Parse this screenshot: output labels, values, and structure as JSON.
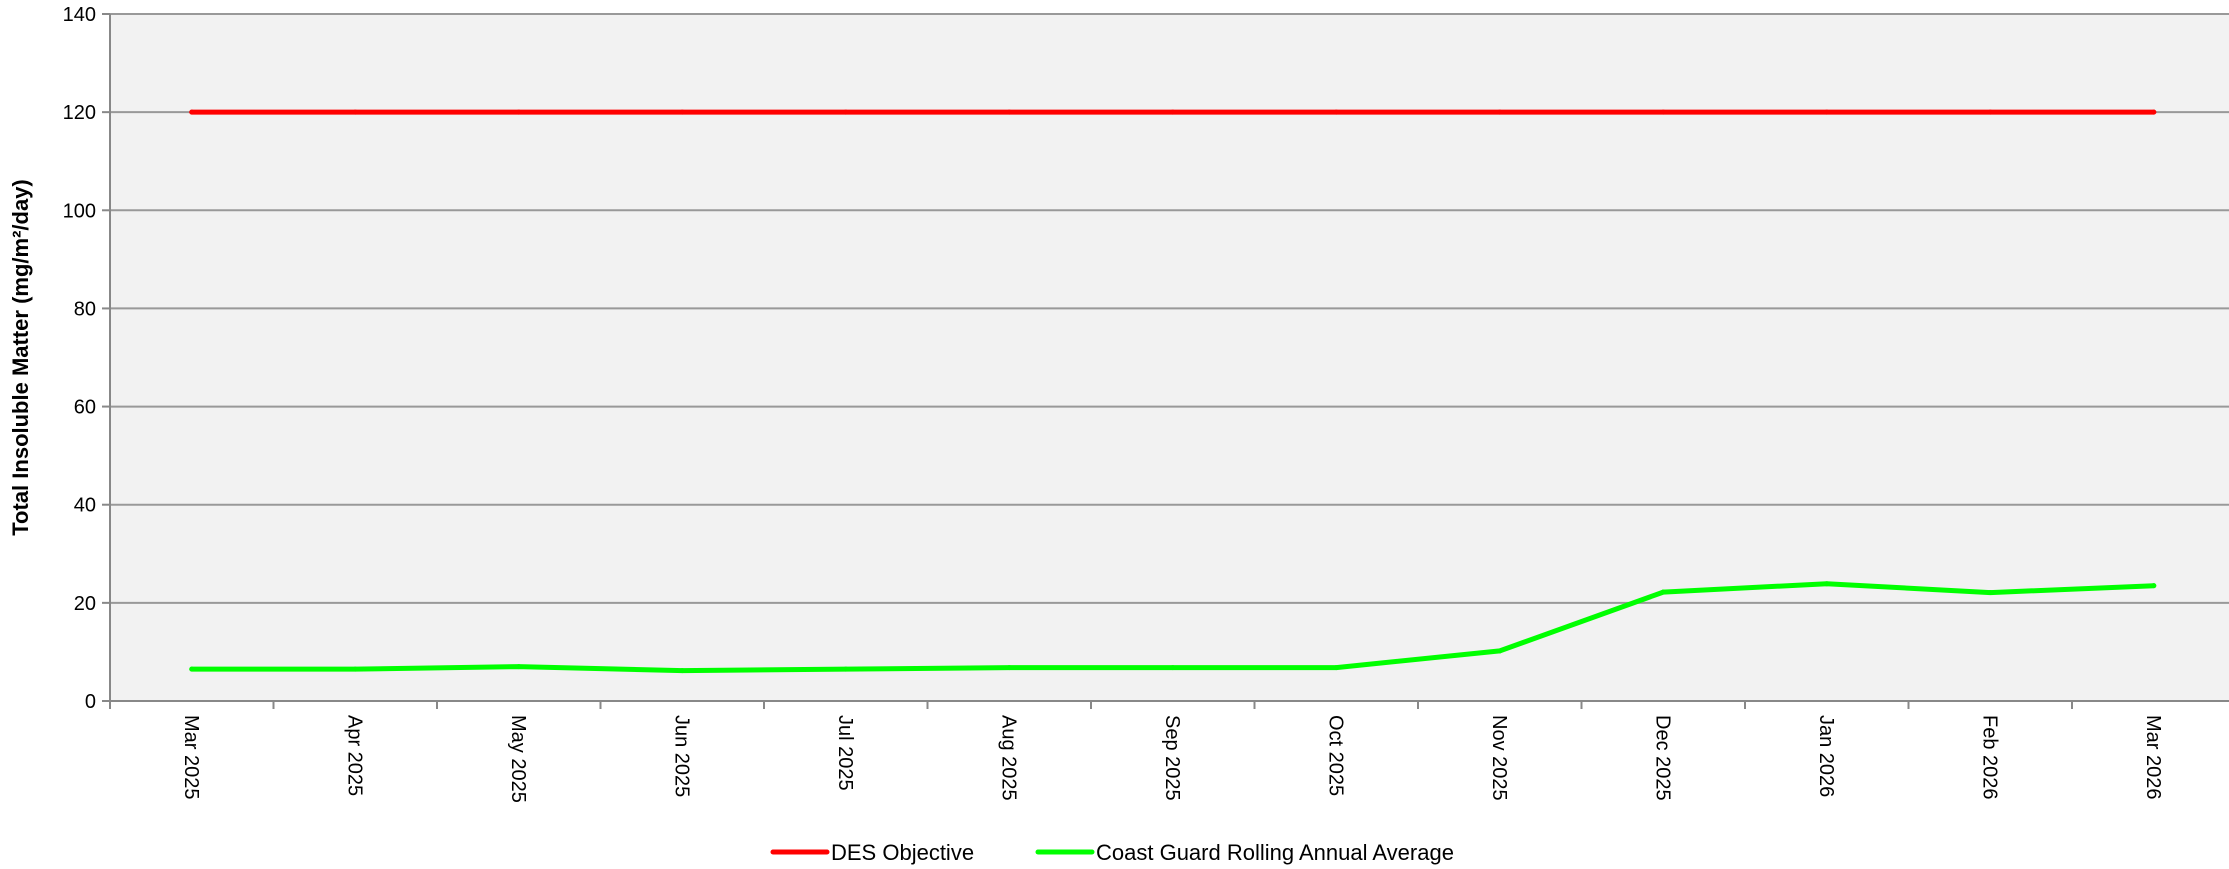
{
  "chart_data": {
    "type": "line",
    "title": "",
    "xlabel": "",
    "ylabel": "Total Insoluble Matter (mg/m²/day)",
    "categories": [
      "Mar 2025",
      "Apr 2025",
      "May 2025",
      "Jun 2025",
      "Jul 2025",
      "Aug 2025",
      "Sep 2025",
      "Oct 2025",
      "Nov 2025",
      "Dec 2025",
      "Jan 2026",
      "Feb 2026",
      "Mar 2026"
    ],
    "ylim": [
      0,
      140
    ],
    "yticks": [
      0,
      20,
      40,
      60,
      80,
      100,
      120,
      140
    ],
    "grid": true,
    "legend_position": "bottom",
    "series": [
      {
        "name": "DES Objective",
        "color": "#ff0000",
        "values": [
          120,
          120,
          120,
          120,
          120,
          120,
          120,
          120,
          120,
          120,
          120,
          120,
          120
        ]
      },
      {
        "name": "Coast Guard Rolling Annual Average",
        "color": "#00ff00",
        "values": [
          6.5,
          6.5,
          7.0,
          6.2,
          6.5,
          6.8,
          6.8,
          6.8,
          10.2,
          22.2,
          23.9,
          22.1,
          23.5
        ]
      }
    ],
    "colors": {
      "plot_background": "#f2f2f2",
      "grid": "#999999",
      "axis": "#888888"
    }
  }
}
